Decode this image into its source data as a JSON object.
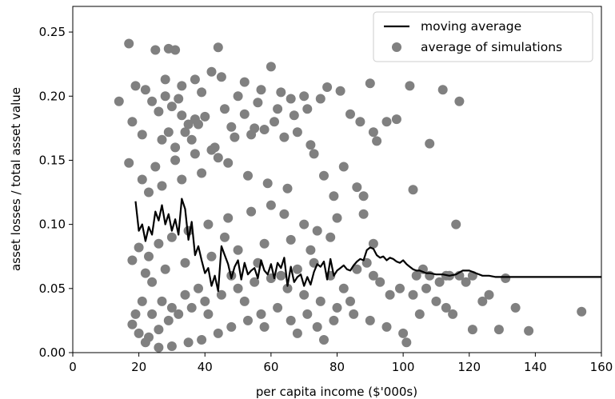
{
  "chart_data": {
    "type": "scatter",
    "xlabel": "per capita income ($'000s)",
    "ylabel": "asset losses / total asset value",
    "xlim": [
      0,
      160
    ],
    "ylim": [
      0,
      0.27
    ],
    "xticks": [
      0,
      20,
      40,
      60,
      80,
      100,
      120,
      140,
      160
    ],
    "yticks": [
      0.0,
      0.05,
      0.1,
      0.15,
      0.2,
      0.25
    ],
    "xtick_labels": [
      "0",
      "20",
      "40",
      "60",
      "80",
      "100",
      "120",
      "140",
      "160"
    ],
    "ytick_labels": [
      "0.00",
      "0.05",
      "0.10",
      "0.15",
      "0.20",
      "0.25"
    ],
    "grid": false,
    "legend_position": "top-right",
    "point_color": "#808080",
    "line_color": "#000000",
    "series": [
      {
        "name": "moving average",
        "kind": "line",
        "x": [
          19,
          20,
          21,
          22,
          23,
          24,
          25,
          26,
          27,
          28,
          29,
          30,
          31,
          32,
          33,
          34,
          35,
          36,
          37,
          38,
          39,
          40,
          41,
          42,
          43,
          44,
          45,
          46,
          47,
          48,
          49,
          50,
          51,
          52,
          53,
          54,
          55,
          56,
          57,
          58,
          59,
          60,
          61,
          62,
          63,
          64,
          65,
          66,
          67,
          68,
          69,
          70,
          71,
          72,
          73,
          74,
          75,
          76,
          77,
          78,
          79,
          80,
          81,
          82,
          83,
          84,
          85,
          86,
          87,
          88,
          89,
          90,
          91,
          92,
          93,
          94,
          95,
          96,
          97,
          98,
          99,
          100,
          101,
          102,
          103,
          104,
          105,
          106,
          107,
          108,
          110,
          112,
          114,
          116,
          118,
          120,
          122,
          124,
          126,
          128,
          130,
          135,
          140,
          145,
          150,
          155,
          160
        ],
        "y": [
          0.118,
          0.095,
          0.1,
          0.087,
          0.098,
          0.092,
          0.11,
          0.103,
          0.115,
          0.1,
          0.108,
          0.095,
          0.104,
          0.092,
          0.12,
          0.112,
          0.088,
          0.102,
          0.076,
          0.083,
          0.072,
          0.062,
          0.066,
          0.052,
          0.06,
          0.048,
          0.083,
          0.076,
          0.069,
          0.058,
          0.067,
          0.072,
          0.057,
          0.07,
          0.061,
          0.064,
          0.066,
          0.058,
          0.072,
          0.064,
          0.061,
          0.069,
          0.058,
          0.07,
          0.066,
          0.074,
          0.052,
          0.067,
          0.055,
          0.059,
          0.061,
          0.052,
          0.059,
          0.053,
          0.063,
          0.069,
          0.067,
          0.071,
          0.057,
          0.073,
          0.06,
          0.064,
          0.066,
          0.068,
          0.065,
          0.064,
          0.068,
          0.071,
          0.073,
          0.072,
          0.08,
          0.082,
          0.081,
          0.076,
          0.074,
          0.075,
          0.072,
          0.074,
          0.073,
          0.071,
          0.07,
          0.072,
          0.069,
          0.067,
          0.065,
          0.064,
          0.064,
          0.063,
          0.062,
          0.062,
          0.061,
          0.061,
          0.06,
          0.061,
          0.064,
          0.064,
          0.062,
          0.06,
          0.06,
          0.059,
          0.059,
          0.059,
          0.059,
          0.059,
          0.059,
          0.059,
          0.059
        ]
      },
      {
        "name": "average of simulations",
        "kind": "scatter",
        "points": [
          [
            17,
            0.241
          ],
          [
            14,
            0.196
          ],
          [
            18,
            0.18
          ],
          [
            17,
            0.148
          ],
          [
            19,
            0.208
          ],
          [
            25,
            0.236
          ],
          [
            29,
            0.237
          ],
          [
            31,
            0.236
          ],
          [
            44,
            0.238
          ],
          [
            60,
            0.223
          ],
          [
            42,
            0.219
          ],
          [
            37,
            0.213
          ],
          [
            22,
            0.205
          ],
          [
            28,
            0.213
          ],
          [
            33,
            0.208
          ],
          [
            39,
            0.203
          ],
          [
            45,
            0.215
          ],
          [
            52,
            0.211
          ],
          [
            57,
            0.205
          ],
          [
            63,
            0.203
          ],
          [
            66,
            0.198
          ],
          [
            70,
            0.2
          ],
          [
            75,
            0.198
          ],
          [
            77,
            0.207
          ],
          [
            81,
            0.204
          ],
          [
            84,
            0.186
          ],
          [
            87,
            0.18
          ],
          [
            90,
            0.21
          ],
          [
            92,
            0.165
          ],
          [
            95,
            0.18
          ],
          [
            98,
            0.182
          ],
          [
            102,
            0.208
          ],
          [
            108,
            0.163
          ],
          [
            112,
            0.205
          ],
          [
            117,
            0.196
          ],
          [
            103,
            0.127
          ],
          [
            116,
            0.1
          ],
          [
            82,
            0.145
          ],
          [
            79,
            0.122
          ],
          [
            73,
            0.155
          ],
          [
            86,
            0.129
          ],
          [
            88,
            0.122
          ],
          [
            91,
            0.172
          ],
          [
            71,
            0.19
          ],
          [
            67,
            0.185
          ],
          [
            61,
            0.18
          ],
          [
            55,
            0.175
          ],
          [
            49,
            0.168
          ],
          [
            43,
            0.16
          ],
          [
            37,
            0.155
          ],
          [
            31,
            0.15
          ],
          [
            25,
            0.145
          ],
          [
            21,
            0.17
          ],
          [
            23,
            0.125
          ],
          [
            27,
            0.13
          ],
          [
            33,
            0.135
          ],
          [
            39,
            0.14
          ],
          [
            47,
            0.148
          ],
          [
            53,
            0.138
          ],
          [
            59,
            0.132
          ],
          [
            65,
            0.128
          ],
          [
            76,
            0.138
          ],
          [
            21,
            0.135
          ],
          [
            20,
            0.082
          ],
          [
            23,
            0.075
          ],
          [
            26,
            0.085
          ],
          [
            30,
            0.09
          ],
          [
            35,
            0.095
          ],
          [
            41,
            0.1
          ],
          [
            47,
            0.105
          ],
          [
            54,
            0.11
          ],
          [
            60,
            0.115
          ],
          [
            64,
            0.108
          ],
          [
            70,
            0.1
          ],
          [
            74,
            0.095
          ],
          [
            78,
            0.09
          ],
          [
            80,
            0.105
          ],
          [
            88,
            0.108
          ],
          [
            91,
            0.085
          ],
          [
            18,
            0.072
          ],
          [
            22,
            0.062
          ],
          [
            24,
            0.055
          ],
          [
            28,
            0.065
          ],
          [
            34,
            0.07
          ],
          [
            42,
            0.075
          ],
          [
            50,
            0.08
          ],
          [
            58,
            0.085
          ],
          [
            66,
            0.088
          ],
          [
            72,
            0.08
          ],
          [
            18,
            0.022
          ],
          [
            20,
            0.015
          ],
          [
            23,
            0.012
          ],
          [
            26,
            0.018
          ],
          [
            29,
            0.025
          ],
          [
            32,
            0.03
          ],
          [
            36,
            0.035
          ],
          [
            40,
            0.04
          ],
          [
            45,
            0.045
          ],
          [
            50,
            0.05
          ],
          [
            55,
            0.055
          ],
          [
            60,
            0.058
          ],
          [
            65,
            0.05
          ],
          [
            70,
            0.045
          ],
          [
            75,
            0.04
          ],
          [
            80,
            0.035
          ],
          [
            85,
            0.03
          ],
          [
            90,
            0.025
          ],
          [
            95,
            0.02
          ],
          [
            100,
            0.015
          ],
          [
            101,
            0.008
          ],
          [
            103,
            0.045
          ],
          [
            105,
            0.03
          ],
          [
            107,
            0.05
          ],
          [
            110,
            0.04
          ],
          [
            113,
            0.035
          ],
          [
            115,
            0.03
          ],
          [
            117,
            0.06
          ],
          [
            119,
            0.055
          ],
          [
            121,
            0.018
          ],
          [
            124,
            0.04
          ],
          [
            126,
            0.045
          ],
          [
            129,
            0.018
          ],
          [
            131,
            0.058
          ],
          [
            134,
            0.035
          ],
          [
            138,
            0.017
          ],
          [
            154,
            0.032
          ],
          [
            113,
            0.06
          ],
          [
            111,
            0.055
          ],
          [
            108,
            0.06
          ],
          [
            106,
            0.065
          ],
          [
            104,
            0.06
          ],
          [
            114,
            0.06
          ],
          [
            121,
            0.06
          ],
          [
            99,
            0.05
          ],
          [
            96,
            0.045
          ],
          [
            93,
            0.055
          ],
          [
            91,
            0.06
          ],
          [
            89,
            0.07
          ],
          [
            86,
            0.065
          ],
          [
            84,
            0.04
          ],
          [
            82,
            0.05
          ],
          [
            78,
            0.06
          ],
          [
            73,
            0.07
          ],
          [
            68,
            0.065
          ],
          [
            63,
            0.06
          ],
          [
            57,
            0.03
          ],
          [
            53,
            0.025
          ],
          [
            48,
            0.02
          ],
          [
            44,
            0.015
          ],
          [
            39,
            0.01
          ],
          [
            35,
            0.008
          ],
          [
            30,
            0.005
          ],
          [
            26,
            0.004
          ],
          [
            22,
            0.008
          ],
          [
            33,
            0.185
          ],
          [
            35,
            0.178
          ],
          [
            37,
            0.182
          ],
          [
            29,
            0.172
          ],
          [
            27,
            0.166
          ],
          [
            31,
            0.16
          ],
          [
            24,
            0.196
          ],
          [
            26,
            0.188
          ],
          [
            28,
            0.2
          ],
          [
            30,
            0.192
          ],
          [
            32,
            0.198
          ],
          [
            34,
            0.172
          ],
          [
            36,
            0.166
          ],
          [
            38,
            0.178
          ],
          [
            40,
            0.184
          ],
          [
            42,
            0.158
          ],
          [
            44,
            0.152
          ],
          [
            46,
            0.19
          ],
          [
            48,
            0.176
          ],
          [
            50,
            0.2
          ],
          [
            52,
            0.186
          ],
          [
            54,
            0.17
          ],
          [
            56,
            0.195
          ],
          [
            58,
            0.174
          ],
          [
            62,
            0.19
          ],
          [
            64,
            0.168
          ],
          [
            68,
            0.172
          ],
          [
            72,
            0.162
          ],
          [
            46,
            0.09
          ],
          [
            48,
            0.06
          ],
          [
            52,
            0.04
          ],
          [
            56,
            0.07
          ],
          [
            58,
            0.02
          ],
          [
            62,
            0.035
          ],
          [
            66,
            0.025
          ],
          [
            68,
            0.015
          ],
          [
            71,
            0.03
          ],
          [
            74,
            0.02
          ],
          [
            76,
            0.01
          ],
          [
            79,
            0.025
          ],
          [
            41,
            0.03
          ],
          [
            38,
            0.05
          ],
          [
            34,
            0.045
          ],
          [
            30,
            0.035
          ],
          [
            27,
            0.04
          ],
          [
            24,
            0.03
          ],
          [
            21,
            0.04
          ],
          [
            19,
            0.03
          ]
        ]
      }
    ]
  }
}
